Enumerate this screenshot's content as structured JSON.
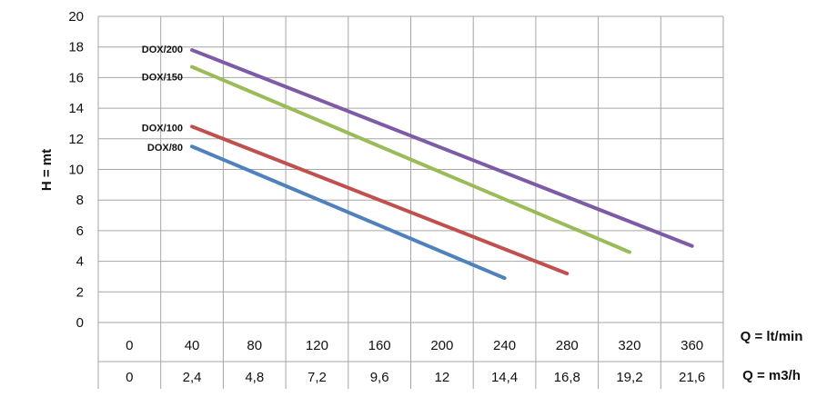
{
  "chart_data": {
    "type": "line",
    "ylabel": "H = mt",
    "ylim": [
      0,
      20
    ],
    "yticks": [
      "0",
      "2",
      "4",
      "6",
      "8",
      "10",
      "12",
      "14",
      "16",
      "18",
      "20"
    ],
    "x_rows": [
      {
        "unit": "Q = lt/min",
        "labels": [
          "0",
          "40",
          "80",
          "120",
          "160",
          "200",
          "240",
          "280",
          "320",
          "360"
        ]
      },
      {
        "unit": "Q = m3/h",
        "labels": [
          "0",
          "2,4",
          "4,8",
          "7,2",
          "9,6",
          "12",
          "14,4",
          "16,8",
          "19,2",
          "21,6"
        ]
      }
    ],
    "xlim": [
      0,
      380
    ],
    "grid": true,
    "series": [
      {
        "name": "DOX/200",
        "color": "#7d5ba6",
        "points": [
          [
            40,
            17.8
          ],
          [
            360,
            5.0
          ]
        ]
      },
      {
        "name": "DOX/150",
        "color": "#9bbb59",
        "points": [
          [
            40,
            16.7
          ],
          [
            320,
            4.6
          ]
        ]
      },
      {
        "name": "DOX/100",
        "color": "#c0504d",
        "points": [
          [
            40,
            12.8
          ],
          [
            280,
            3.2
          ]
        ]
      },
      {
        "name": "DOX/80",
        "color": "#4f81bd",
        "points": [
          [
            40,
            11.5
          ],
          [
            240,
            2.9
          ]
        ]
      }
    ]
  }
}
